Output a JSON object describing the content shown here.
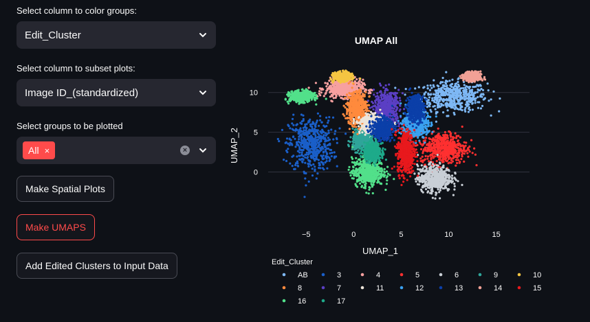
{
  "controls": {
    "color_groups_label": "Select column to color groups:",
    "color_groups_value": "Edit_Cluster",
    "subset_label": "Select column to subset plots:",
    "subset_value": "Image ID_(standardized)",
    "groups_label": "Select groups to be plotted",
    "groups_chip": "All",
    "chip_remove": "×",
    "clear_all": "×"
  },
  "buttons": {
    "spatial": "Make Spatial Plots",
    "umaps": "Make UMAPS",
    "add_clusters": "Add Edited Clusters to Input Data"
  },
  "colors": {
    "accent": "#ff4b4b",
    "background": "#0e1117",
    "widget": "#262730"
  },
  "chart_data": {
    "type": "scatter",
    "title": "UMAP All",
    "xlabel": "UMAP_1",
    "ylabel": "UMAP_2",
    "xlim": [
      -9,
      18.5
    ],
    "ylim": [
      -6,
      13
    ],
    "xticks": [
      -5,
      0,
      5,
      10,
      15
    ],
    "yticks": [
      0,
      5,
      10
    ],
    "grid": true,
    "legend_title": "Edit_Cluster",
    "legend_placement": "bottom",
    "series": [
      {
        "name": "AB",
        "color": "#7eb8f5",
        "cx": 10.5,
        "cy": 9.5,
        "sx": 3.2,
        "sy": 1.7
      },
      {
        "name": "3",
        "color": "#1a5fc9",
        "cx": -4.5,
        "cy": 3.5,
        "sx": 2.1,
        "sy": 3.0
      },
      {
        "name": "4",
        "color": "#f7a0a0",
        "cx": -1.0,
        "cy": 10.5,
        "sx": 1.8,
        "sy": 1.0
      },
      {
        "name": "5",
        "color": "#ff3030",
        "cx": 9.5,
        "cy": 3.0,
        "sx": 2.2,
        "sy": 1.8
      },
      {
        "name": "6",
        "color": "#c9cfd6",
        "cx": 8.5,
        "cy": -0.8,
        "sx": 1.6,
        "sy": 1.5
      },
      {
        "name": "9",
        "color": "#2fa59a",
        "cx": 1.0,
        "cy": 4.0,
        "sx": 1.0,
        "sy": 1.2
      },
      {
        "name": "10",
        "color": "#f5c542",
        "cx": -1.2,
        "cy": 12.0,
        "sx": 0.8,
        "sy": 0.5
      },
      {
        "name": "8",
        "color": "#ff8a3d",
        "cx": 0.3,
        "cy": 8.0,
        "sx": 1.0,
        "sy": 2.0
      },
      {
        "name": "7",
        "color": "#5b3fc4",
        "cx": 3.5,
        "cy": 8.0,
        "sx": 1.2,
        "sy": 2.0
      },
      {
        "name": "11",
        "color": "#ece4d9",
        "cx": 2.0,
        "cy": 6.0,
        "sx": 1.2,
        "sy": 1.0
      },
      {
        "name": "12",
        "color": "#3aa1f0",
        "cx": 6.5,
        "cy": 6.0,
        "sx": 1.2,
        "sy": 1.5
      },
      {
        "name": "13",
        "color": "#0b3fa8",
        "cx": 3.0,
        "cy": 5.5,
        "sx": 1.0,
        "sy": 1.2
      },
      {
        "name": "14",
        "color": "#f2a196",
        "cx": 12.5,
        "cy": 12.0,
        "sx": 0.8,
        "sy": 0.5
      },
      {
        "name": "15",
        "color": "#e8191d",
        "cx": 5.5,
        "cy": 2.5,
        "sx": 0.8,
        "sy": 2.5
      },
      {
        "name": "16",
        "color": "#52e08a",
        "cx": 1.5,
        "cy": 0.0,
        "sx": 1.5,
        "sy": 1.6
      },
      {
        "name": "17",
        "color": "#1eaa8a",
        "cx": 2.0,
        "cy": 2.5,
        "sx": 0.8,
        "sy": 1.0
      }
    ],
    "extra_clusters": [
      {
        "color": "#52e08a",
        "cx": -5.5,
        "cy": 9.5,
        "sx": 1.1,
        "sy": 0.6
      },
      {
        "color": "#0b3fa8",
        "cx": 6.5,
        "cy": 8.0,
        "sx": 0.8,
        "sy": 1.5
      }
    ]
  }
}
